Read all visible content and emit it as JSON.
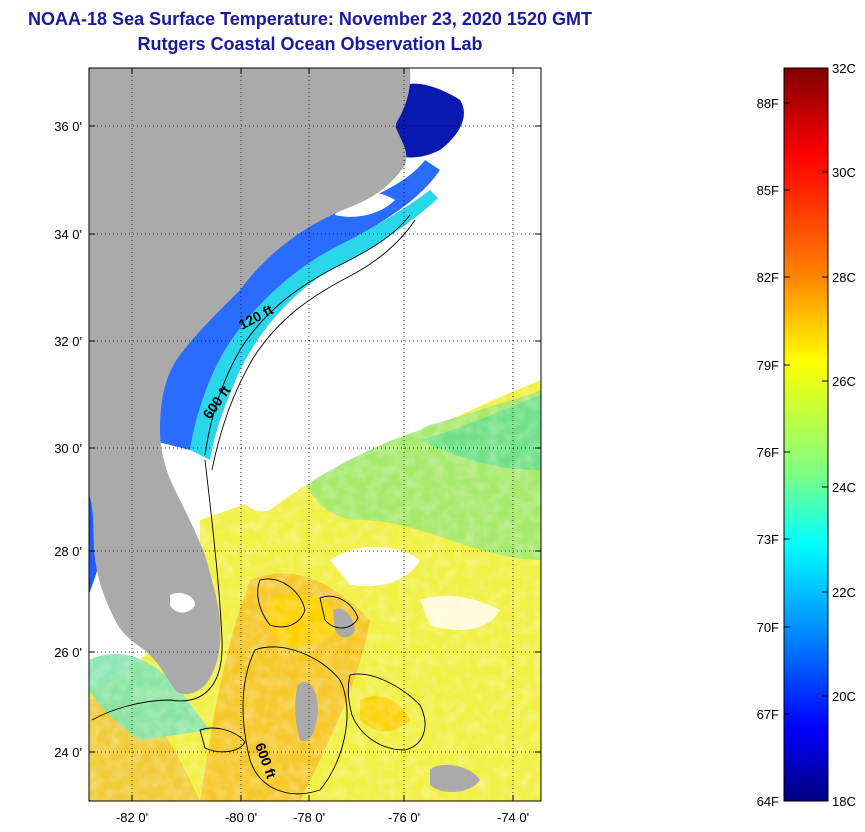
{
  "header": {
    "title": "NOAA-18 Sea Surface Temperature:  November 23, 2020 1520 GMT",
    "subtitle": "Rutgers Coastal Ocean Observation Lab"
  },
  "map": {
    "lat_labels": [
      "36 0'",
      "34 0'",
      "32 0'",
      "30 0'",
      "28 0'",
      "26 0'",
      "24 0'"
    ],
    "lon_labels": [
      "-82 0'",
      "-80 0'",
      "-78 0'",
      "-76 0'",
      "-74 0'"
    ],
    "contour_labels": [
      "120 ft",
      "600 ft",
      "600 ft"
    ],
    "land_color": "#aaaaaa",
    "cloud_color": "#ffffff"
  },
  "colorbar": {
    "f_labels": [
      "88F",
      "85F",
      "82F",
      "79F",
      "76F",
      "73F",
      "70F",
      "67F",
      "64F"
    ],
    "c_labels": [
      "32C",
      "30C",
      "28C",
      "26C",
      "24C",
      "22C",
      "20C",
      "18C"
    ],
    "colors": [
      "#800000",
      "#ff0000",
      "#ff8000",
      "#ffff00",
      "#80ff80",
      "#00ffff",
      "#0080ff",
      "#0000ff",
      "#000080"
    ]
  }
}
